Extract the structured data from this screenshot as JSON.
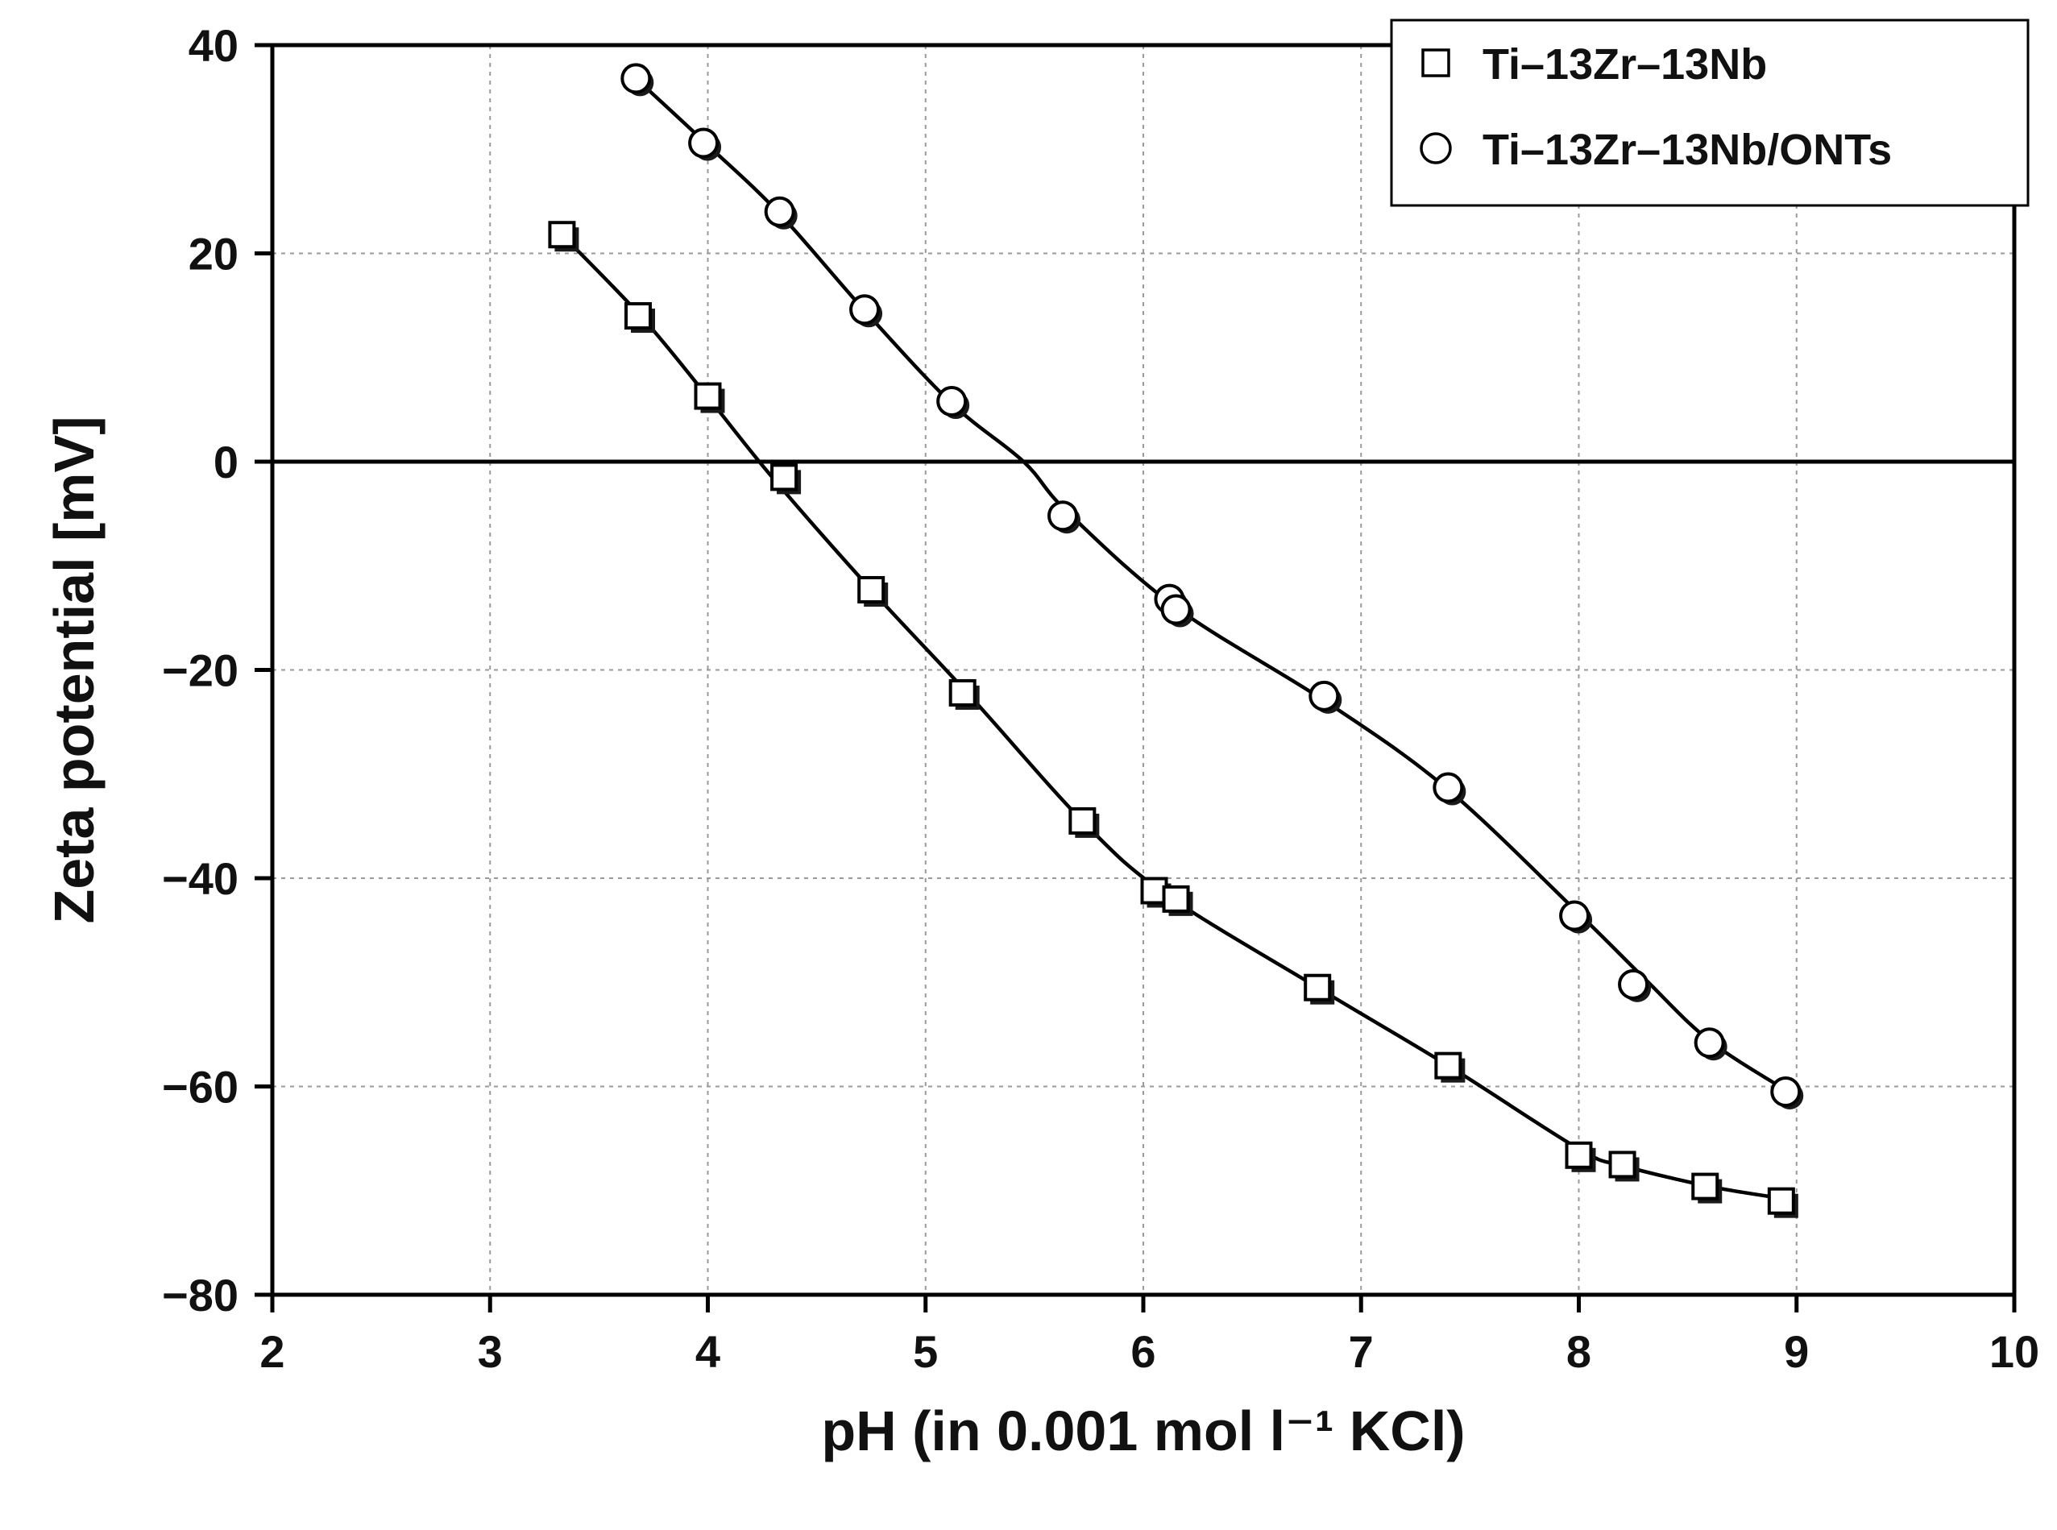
{
  "chart_data": {
    "type": "scatter",
    "title": "",
    "xlabel": "pH (in 0.001 mol l⁻¹ KCl)",
    "ylabel": "Zeta potential [mV]",
    "xlim": [
      2,
      10
    ],
    "ylim": [
      -80,
      40
    ],
    "xticks": [
      2,
      3,
      4,
      5,
      6,
      7,
      8,
      9,
      10
    ],
    "yticks": [
      -80,
      -60,
      -40,
      -20,
      0,
      20,
      40
    ],
    "xtick_labels": [
      "2",
      "3",
      "4",
      "5",
      "6",
      "7",
      "8",
      "9",
      "10"
    ],
    "ytick_labels": [
      "−80",
      "−60",
      "−40",
      "−20",
      "0",
      "20",
      "40"
    ],
    "grid": true,
    "legend_position": "top-right",
    "series": [
      {
        "name": "Ti–13Zr–13Nb",
        "marker": "square",
        "points": [
          [
            3.33,
            21.8
          ],
          [
            3.68,
            14.0
          ],
          [
            4.0,
            6.3
          ],
          [
            4.35,
            -1.5
          ],
          [
            4.75,
            -12.3
          ],
          [
            5.17,
            -22.2
          ],
          [
            5.72,
            -34.5
          ],
          [
            6.05,
            -41.2
          ],
          [
            6.15,
            -42.0
          ],
          [
            6.8,
            -50.5
          ],
          [
            7.4,
            -58.0
          ],
          [
            8.0,
            -66.6
          ],
          [
            8.2,
            -67.5
          ],
          [
            8.58,
            -69.6
          ],
          [
            8.93,
            -71.0
          ]
        ],
        "fit": [
          [
            3.33,
            21.8
          ],
          [
            3.7,
            13.8
          ],
          [
            4.0,
            6.2
          ],
          [
            4.3,
            -1.6
          ],
          [
            4.75,
            -12.3
          ],
          [
            5.2,
            -22.4
          ],
          [
            5.72,
            -34.5
          ],
          [
            6.1,
            -41.5
          ],
          [
            6.8,
            -50.5
          ],
          [
            7.4,
            -58.0
          ],
          [
            8.0,
            -66.0
          ],
          [
            8.2,
            -67.6
          ],
          [
            8.6,
            -69.6
          ],
          [
            8.95,
            -70.8
          ]
        ]
      },
      {
        "name": "Ti–13Zr–13Nb/ONTs",
        "marker": "circle",
        "points": [
          [
            3.67,
            36.8
          ],
          [
            3.98,
            30.6
          ],
          [
            4.33,
            24.0
          ],
          [
            4.72,
            14.6
          ],
          [
            5.12,
            5.8
          ],
          [
            5.63,
            -5.2
          ],
          [
            6.12,
            -13.2
          ],
          [
            6.15,
            -14.2
          ],
          [
            6.83,
            -22.5
          ],
          [
            7.4,
            -31.3
          ],
          [
            7.98,
            -43.6
          ],
          [
            8.25,
            -50.2
          ],
          [
            8.6,
            -55.8
          ],
          [
            8.95,
            -60.5
          ]
        ],
        "fit": [
          [
            3.67,
            36.8
          ],
          [
            4.0,
            30.4
          ],
          [
            4.33,
            23.8
          ],
          [
            4.72,
            14.5
          ],
          [
            5.12,
            5.6
          ],
          [
            5.45,
            0.0
          ],
          [
            5.65,
            -4.8
          ],
          [
            6.15,
            -14.0
          ],
          [
            6.85,
            -23.2
          ],
          [
            7.4,
            -31.5
          ],
          [
            8.0,
            -43.4
          ],
          [
            8.3,
            -49.6
          ],
          [
            8.6,
            -55.6
          ],
          [
            8.97,
            -60.6
          ]
        ]
      }
    ],
    "annotations": [
      "horizontal reference line at y = 0"
    ]
  }
}
